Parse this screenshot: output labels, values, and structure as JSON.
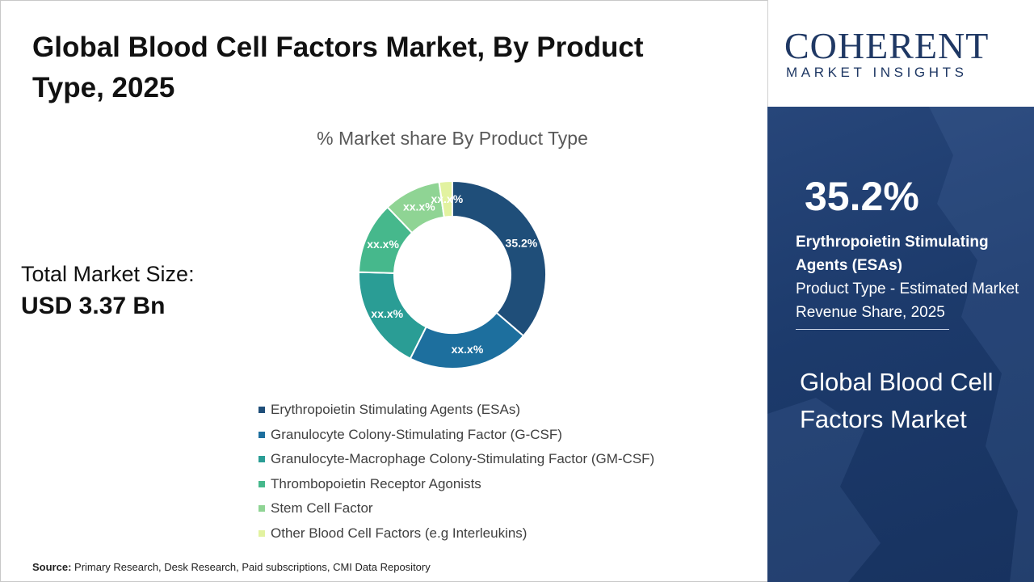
{
  "title": "Global Blood Cell Factors Market, By Product Type, 2025",
  "total_market": {
    "label": "Total Market Size:",
    "value": "USD 3.37 Bn"
  },
  "source": {
    "label": "Source:",
    "text": "Primary Research, Desk Research, Paid subscriptions, CMI Data Repository"
  },
  "logo": {
    "word": "COHERENT",
    "sub": "MARKET INSIGHTS"
  },
  "highlight": {
    "percent": "35.2%",
    "segment": "Erythropoietin Stimulating Agents (ESAs)",
    "description": "Product Type - Estimated Market Revenue Share, 2025",
    "market_name": "Global Blood Cell Factors Market"
  },
  "colors": {
    "navy": "#1f4e79",
    "panel": "#1c3a6b"
  },
  "chart_data": {
    "type": "pie",
    "variant": "donut",
    "title": "% Market share By Product Type",
    "legend_position": "bottom",
    "categories": [
      "Erythropoietin Stimulating Agents (ESAs)",
      "Granulocyte Colony-Stimulating Factor (G-CSF)",
      "Granulocyte-Macrophage Colony-Stimulating Factor (GM-CSF)",
      "Thrombopoietin Receptor Agonists",
      "Stem Cell Factor",
      "Other Blood Cell Factors (e.g Interleukins)"
    ],
    "values": [
      35.2,
      20.5,
      17.5,
      12.0,
      9.6,
      2.2
    ],
    "labels": [
      "35.2%",
      "xx.x%",
      "xx.x%",
      "xx.x%",
      "xx.x%",
      "xx.x%"
    ],
    "colors": [
      "#1f4e79",
      "#1d6f9e",
      "#2a9d95",
      "#46b88c",
      "#8fd494",
      "#e2f2a0"
    ]
  }
}
